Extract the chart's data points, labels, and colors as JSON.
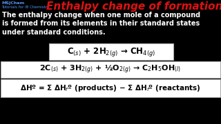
{
  "background_color": "#000000",
  "title": "Enthalpy change of formation",
  "title_color": "#dd1111",
  "title_fontsize": 11.0,
  "watermark_line1": "MSJChem",
  "watermark_line2": "Tutorials for IB Chemistry",
  "watermark_color": "#5599ff",
  "watermark_fontsize": 4.5,
  "definition_color": "#ffffff",
  "definition_fontsize": 7.0,
  "eq1": "C$_{(s)}$ + 2H$_{2(g)}$ → CH$_{4(g)}$",
  "eq2": "2C$_{(s)}$ + 3H$_{2(g)}$ + ½O$_{2(g)}$ → C$_2$H$_5$OH$_{(l)}$",
  "eq3": "ΔHº = Σ ΔH$_f$º (products) − Σ ΔH$_f$º (reactants)",
  "eq_color": "#000000",
  "box_bg": "#ffffff",
  "box_border": "#888888",
  "eq1_fontsize": 8.5,
  "eq2_fontsize": 8.0,
  "eq3_fontsize": 7.5
}
